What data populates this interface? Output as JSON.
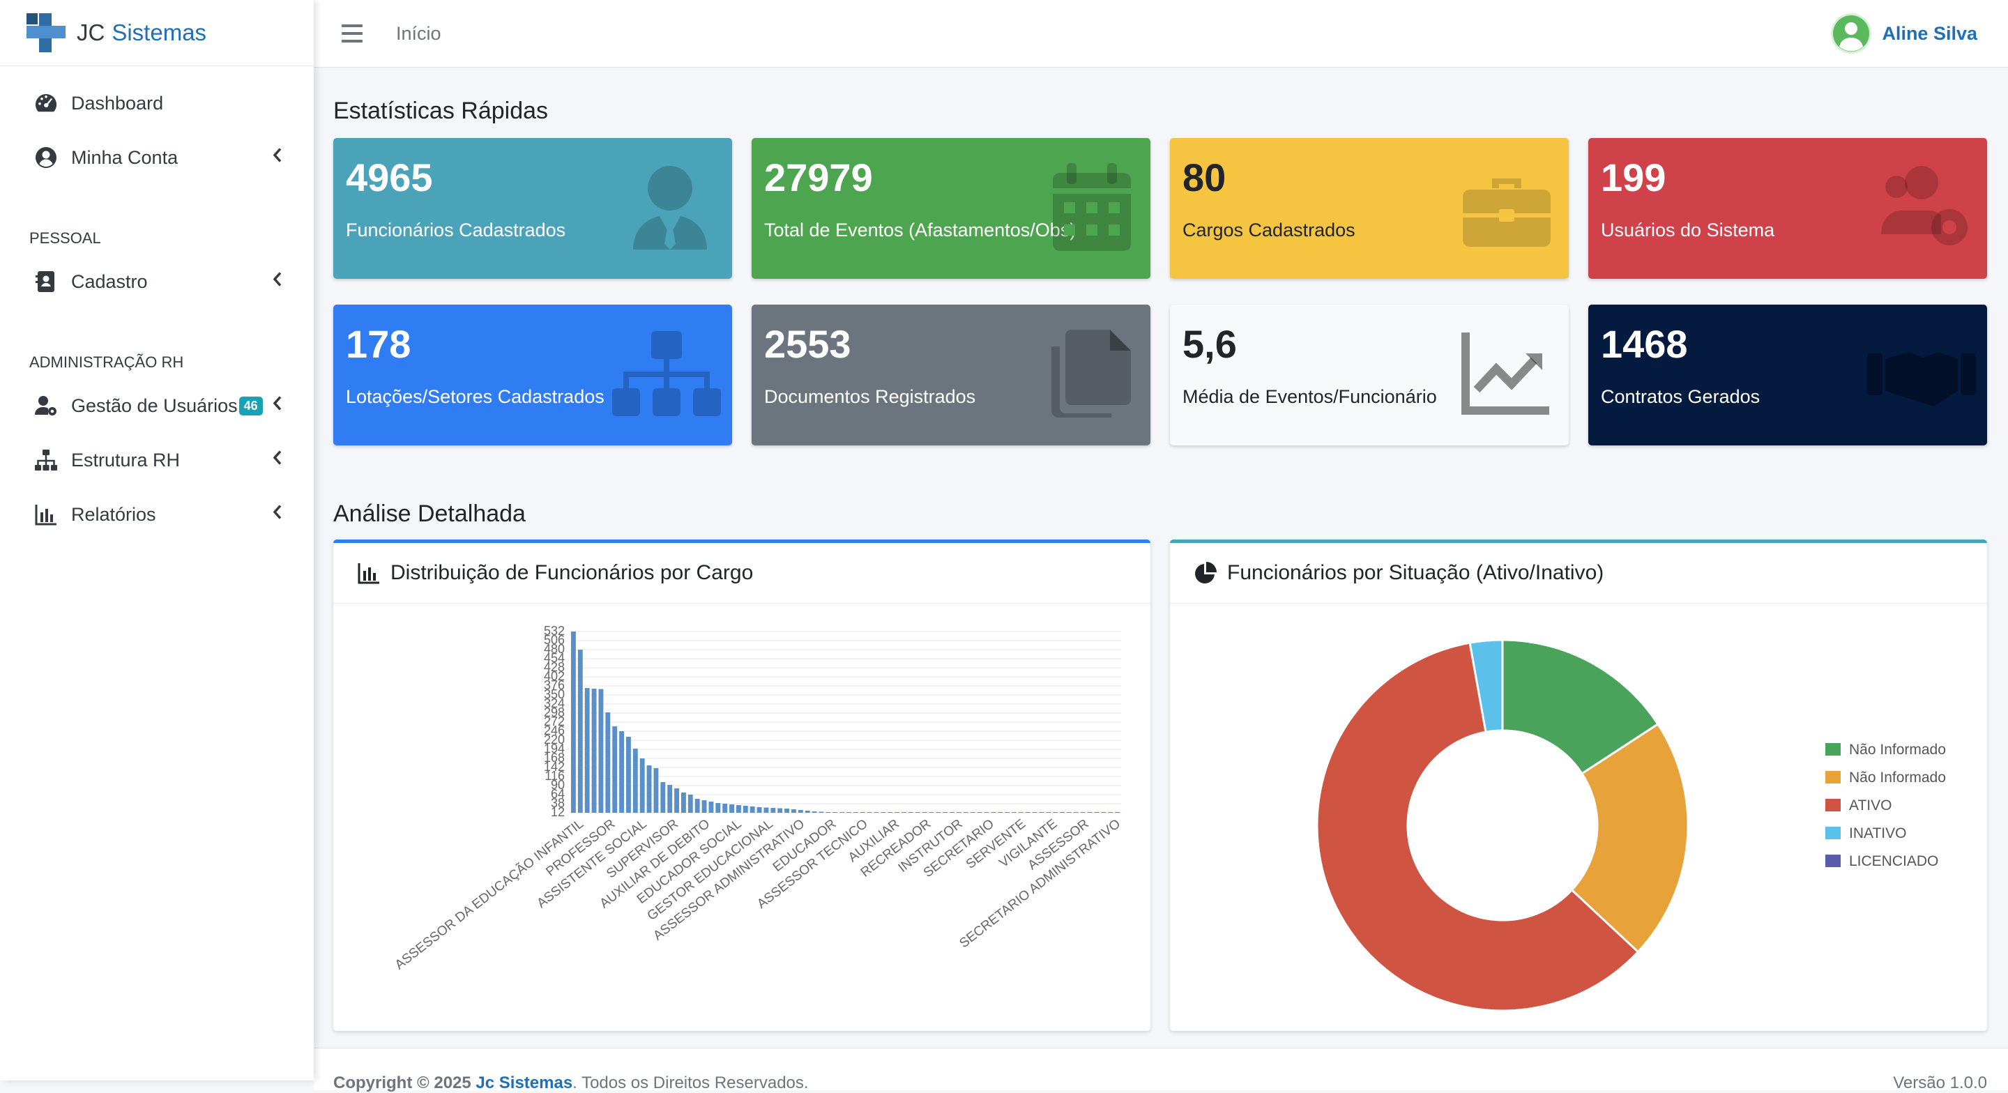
{
  "brand": {
    "name_part1": "JC",
    "name_part2": "Sistemas"
  },
  "sidebar": {
    "items": [
      {
        "label": "Dashboard",
        "icon": "gauge-icon"
      },
      {
        "label": "Minha Conta",
        "icon": "user-circle-icon"
      }
    ],
    "section_pessoal": "PESSOAL",
    "cadastro": {
      "label": "Cadastro",
      "icon": "address-card-icon"
    },
    "section_admin": "ADMINISTRAÇÃO RH",
    "gestao": {
      "label": "Gestão de Usuários",
      "badge": "46",
      "icon": "user-gear-icon"
    },
    "estrutura": {
      "label": "Estrutura RH",
      "icon": "sitemap-icon"
    },
    "relatorios": {
      "label": "Relatórios",
      "icon": "chart-bar-icon"
    }
  },
  "topbar": {
    "breadcrumb": "Início",
    "user_name": "Aline Silva"
  },
  "sections": {
    "quick_stats": "Estatísticas Rápidas",
    "detailed": "Análise Detalhada"
  },
  "stats": [
    {
      "value": "4965",
      "label": "Funcionários Cadastrados",
      "color": "#17a2b8"
    },
    {
      "value": "27979",
      "label": "Total de Eventos (Afastamentos/Obs)",
      "color": "#28a745"
    },
    {
      "value": "80",
      "label": "Cargos Cadastrados",
      "color": "#ffc107"
    },
    {
      "value": "199",
      "label": "Usuários do Sistema",
      "color": "#dc3545"
    },
    {
      "value": "178",
      "label": "Lotações/Setores Cadastrados",
      "color": "#007bff"
    },
    {
      "value": "2553",
      "label": "Documentos Registrados",
      "color": "#6c757d"
    },
    {
      "value": "5,6",
      "label": "Média de Eventos/Funcionário",
      "color": "#f8f9fa"
    },
    {
      "value": "1468",
      "label": "Contratos Gerados",
      "color": "#001f3f"
    }
  ],
  "cards": {
    "bar_title": "Distribuição de Funcionários por Cargo",
    "pie_title": "Funcionários por Situação (Ativo/Inativo)"
  },
  "chart_data": [
    {
      "type": "bar",
      "title": "",
      "y_ticks": [
        "532",
        "506",
        "480",
        "454",
        "428",
        "402",
        "376",
        "350",
        "324",
        "298",
        "272",
        "246",
        "220",
        "194",
        "168",
        "142",
        "116",
        "90",
        "64",
        "38",
        "12"
      ],
      "ylim": [
        12,
        532
      ],
      "x_tick_labels": [
        "ASSESSOR DA EDUCAÇÃO INFANTIL",
        "PROFESSOR",
        "ASSISTENTE SOCIAL",
        "SUPERVISOR",
        "AUXILIAR DE DEBITO",
        "EDUCADOR SOCIAL",
        "GESTOR EDUCACIONAL",
        "ASSESSOR ADMINISTRATIVO",
        "EDUCADOR",
        "ASSESSOR TECNICO",
        "AUXILIAR",
        "RECREADOR",
        "INSTRUTOR",
        "SECRETARIO",
        "SERVENTE",
        "VIGILANTE",
        "ASSESSOR",
        "SECRETARIO ADMINISTRATIVO"
      ],
      "values": [
        532,
        480,
        370,
        368,
        367,
        300,
        260,
        246,
        230,
        196,
        168,
        148,
        140,
        100,
        92,
        82,
        70,
        64,
        52,
        48,
        44,
        40,
        38,
        36,
        34,
        32,
        30,
        28,
        27,
        26,
        25,
        24,
        22,
        20,
        18,
        16,
        15,
        14,
        13,
        12,
        11,
        10,
        9,
        8,
        7,
        7,
        6,
        6,
        5,
        5,
        5,
        4,
        4,
        4,
        3,
        3,
        3,
        2,
        2,
        2,
        2,
        2,
        2,
        1,
        1,
        1,
        1,
        1,
        1,
        1,
        1,
        1,
        1,
        1,
        1,
        1,
        1,
        1,
        1,
        1
      ]
    },
    {
      "type": "pie",
      "title": "",
      "donut": true,
      "legend_position": "right",
      "categories": [
        "Não Informado",
        "Não Informado",
        "ATIVO",
        "INATIVO",
        "LICENCIADO"
      ],
      "values": [
        785,
        1050,
        2990,
        140,
        0
      ],
      "colors": [
        "#4aa35a",
        "#e8a23a",
        "#cf5441",
        "#5bc0ea",
        "#5b5ca8"
      ]
    }
  ],
  "footer": {
    "copyright_prefix": "Copyright © 2025",
    "company": "Jc Sistemas",
    "suffix": ". Todos os Direitos Reservados.",
    "version": "Versão 1.0.0"
  }
}
